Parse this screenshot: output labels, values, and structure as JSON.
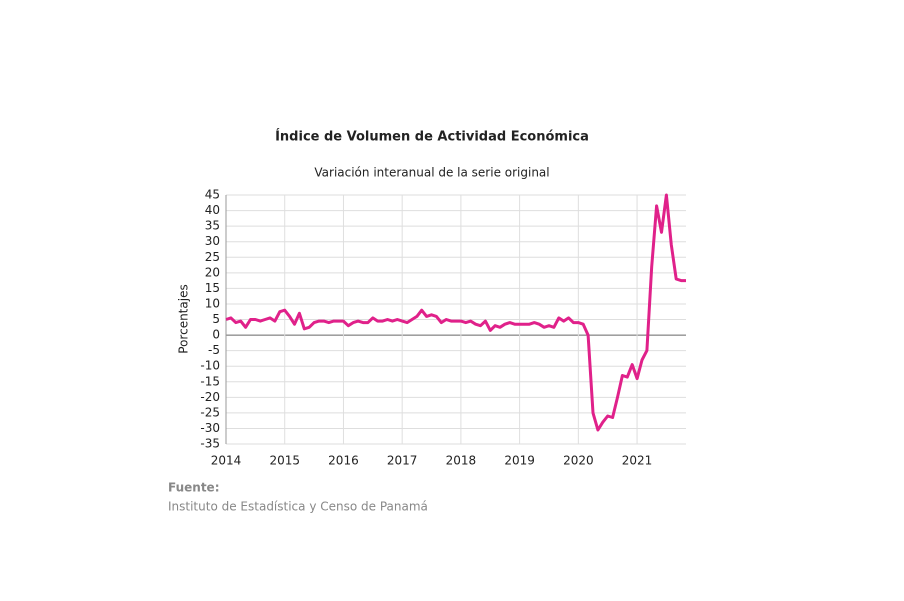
{
  "chart_data": {
    "type": "line",
    "title": "Índice de Volumen de  Actividad Económica",
    "subtitle": "Variación interanual de la serie original",
    "y_label": "Porcentajes",
    "source_label": "Fuente:",
    "source": "Instituto de Estadística y Censo de Panamá",
    "categories": [
      "2014",
      null,
      null,
      null,
      null,
      null,
      null,
      null,
      null,
      null,
      null,
      null,
      "2015",
      null,
      null,
      null,
      null,
      null,
      null,
      null,
      null,
      null,
      null,
      null,
      "2016",
      null,
      null,
      null,
      null,
      null,
      null,
      null,
      null,
      null,
      null,
      null,
      "2017",
      null,
      null,
      null,
      null,
      null,
      null,
      null,
      null,
      null,
      null,
      null,
      "2018",
      null,
      null,
      null,
      null,
      null,
      null,
      null,
      null,
      null,
      null,
      null,
      "2019",
      null,
      null,
      null,
      null,
      null,
      null,
      null,
      null,
      null,
      null,
      null,
      "2020",
      null,
      null,
      null,
      null,
      null,
      null,
      null,
      null,
      null,
      null,
      null,
      "2021",
      null,
      null,
      null,
      null,
      null,
      null,
      null,
      null,
      null,
      null
    ],
    "series": [
      {
        "name": "Variación interanual",
        "color": "#e0218a",
        "values": [
          5,
          5.5,
          4,
          4.5,
          2.5,
          5,
          5,
          4.5,
          5,
          5.5,
          4.5,
          7.5,
          8,
          6,
          3.5,
          7,
          2,
          2.5,
          4,
          4.5,
          4.5,
          4,
          4.5,
          4.5,
          4.5,
          3,
          4,
          4.5,
          4,
          4,
          5.5,
          4.5,
          4.5,
          5,
          4.5,
          5,
          4.5,
          4,
          5,
          6,
          8,
          6,
          6.5,
          6,
          4,
          5,
          4.5,
          4.5,
          4.5,
          4,
          4.5,
          3.5,
          3,
          4.5,
          1.5,
          3,
          2.5,
          3.5,
          4,
          3.5,
          3.5,
          3.5,
          3.5,
          4,
          3.5,
          2.5,
          3,
          2.5,
          5.5,
          4.5,
          5.5,
          4,
          4,
          3.5,
          0,
          -25,
          -30.5,
          -28,
          -26,
          -26.5,
          -20,
          -13,
          -13.5,
          -9.5,
          -14,
          -8,
          -5,
          22,
          41.5,
          33,
          45,
          29,
          18,
          17.5,
          17.5
        ]
      }
    ],
    "ylim": [
      -35,
      45
    ],
    "yticks": [
      -35,
      -30,
      -25,
      -20,
      -15,
      -10,
      -5,
      0,
      5,
      10,
      15,
      20,
      25,
      30,
      35,
      40,
      45
    ],
    "grid": true
  }
}
